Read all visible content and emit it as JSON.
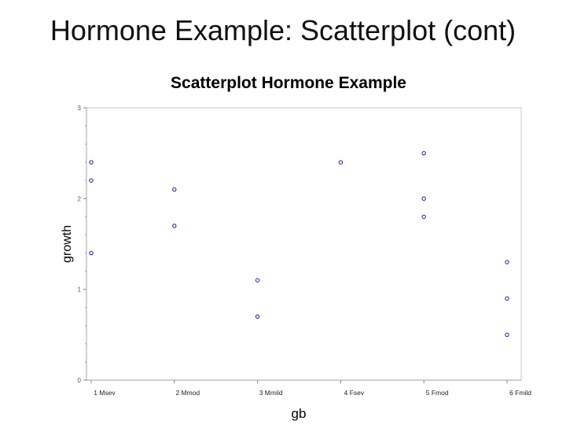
{
  "slide_title": "Hormone Example: Scatterplot (cont)",
  "chart_data": {
    "type": "scatter",
    "title": "Scatterplot Hormone Example",
    "xlabel": "gb",
    "ylabel": "growth",
    "categories": [
      "1 Msev",
      "2 Mmod",
      "3 Mmild",
      "4 Fsev",
      "5 Fmod",
      "6 Fmild"
    ],
    "ylim": [
      0,
      3
    ],
    "yticks": [
      0,
      1,
      2,
      3
    ],
    "grid": false,
    "marker": "open-circle",
    "color": "#1a1aa6",
    "points": [
      {
        "x": "1 Msev",
        "y": 2.4
      },
      {
        "x": "1 Msev",
        "y": 2.2
      },
      {
        "x": "1 Msev",
        "y": 1.4
      },
      {
        "x": "2 Mmod",
        "y": 2.1
      },
      {
        "x": "2 Mmod",
        "y": 1.7
      },
      {
        "x": "3 Mmild",
        "y": 1.1
      },
      {
        "x": "3 Mmild",
        "y": 0.7
      },
      {
        "x": "4 Fsev",
        "y": 2.4
      },
      {
        "x": "5 Fmod",
        "y": 2.5
      },
      {
        "x": "5 Fmod",
        "y": 2.0
      },
      {
        "x": "5 Fmod",
        "y": 1.8
      },
      {
        "x": "6 Fmild",
        "y": 1.3
      },
      {
        "x": "6 Fmild",
        "y": 0.9
      },
      {
        "x": "6 Fmild",
        "y": 0.5
      }
    ]
  }
}
